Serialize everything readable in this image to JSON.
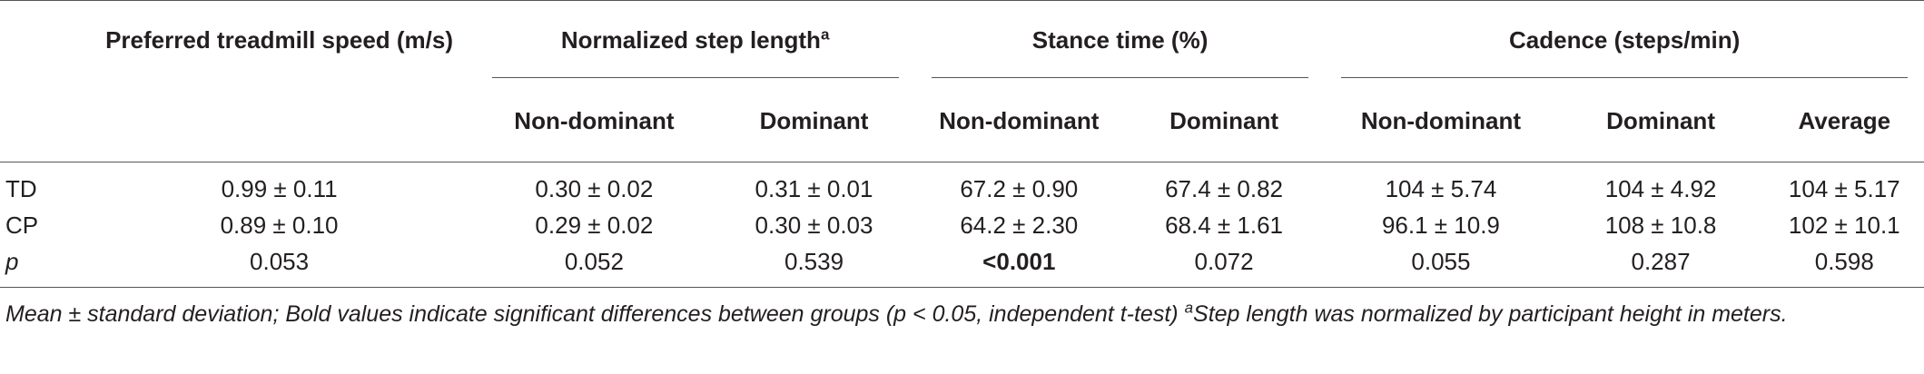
{
  "header": {
    "preferred_speed": "Preferred treadmill speed (m/s)",
    "step_length": "Normalized step length",
    "step_length_sup": "a",
    "stance_time": "Stance time (%)",
    "cadence": "Cadence (steps/min)"
  },
  "subheader": {
    "sl_nondominant": "Non-dominant",
    "sl_dominant": "Dominant",
    "st_nondominant": "Non-dominant",
    "st_dominant": "Dominant",
    "cad_nondominant": "Non-dominant",
    "cad_dominant": "Dominant",
    "cad_average": "Average"
  },
  "rows": [
    {
      "label": "TD",
      "speed": "0.99 ± 0.11",
      "sl_nd": "0.30 ± 0.02",
      "sl_d": "0.31 ± 0.01",
      "st_nd": "67.2 ± 0.90",
      "st_d": "67.4 ± 0.82",
      "cad_nd": "104 ± 5.74",
      "cad_d": "104 ± 4.92",
      "cad_avg": "104 ± 5.17"
    },
    {
      "label": "CP",
      "speed": "0.89 ± 0.10",
      "sl_nd": "0.29 ± 0.02",
      "sl_d": "0.30 ± 0.03",
      "st_nd": "64.2 ± 2.30",
      "st_d": "68.4 ± 1.61",
      "cad_nd": "96.1 ± 10.9",
      "cad_d": "108 ± 10.8",
      "cad_avg": "102 ± 10.1"
    },
    {
      "label": "p",
      "speed": "0.053",
      "sl_nd": "0.052",
      "sl_d": "0.539",
      "st_nd": "<0.001",
      "st_d": "0.072",
      "cad_nd": "0.055",
      "cad_d": "0.287",
      "cad_avg": "0.598"
    }
  ],
  "footnote": {
    "text": "Mean ± standard deviation; Bold values indicate significant differences between groups (p < 0.05, independent t-test) ",
    "sup": "a",
    "tail": "Step length was normalized by participant height in meters."
  }
}
